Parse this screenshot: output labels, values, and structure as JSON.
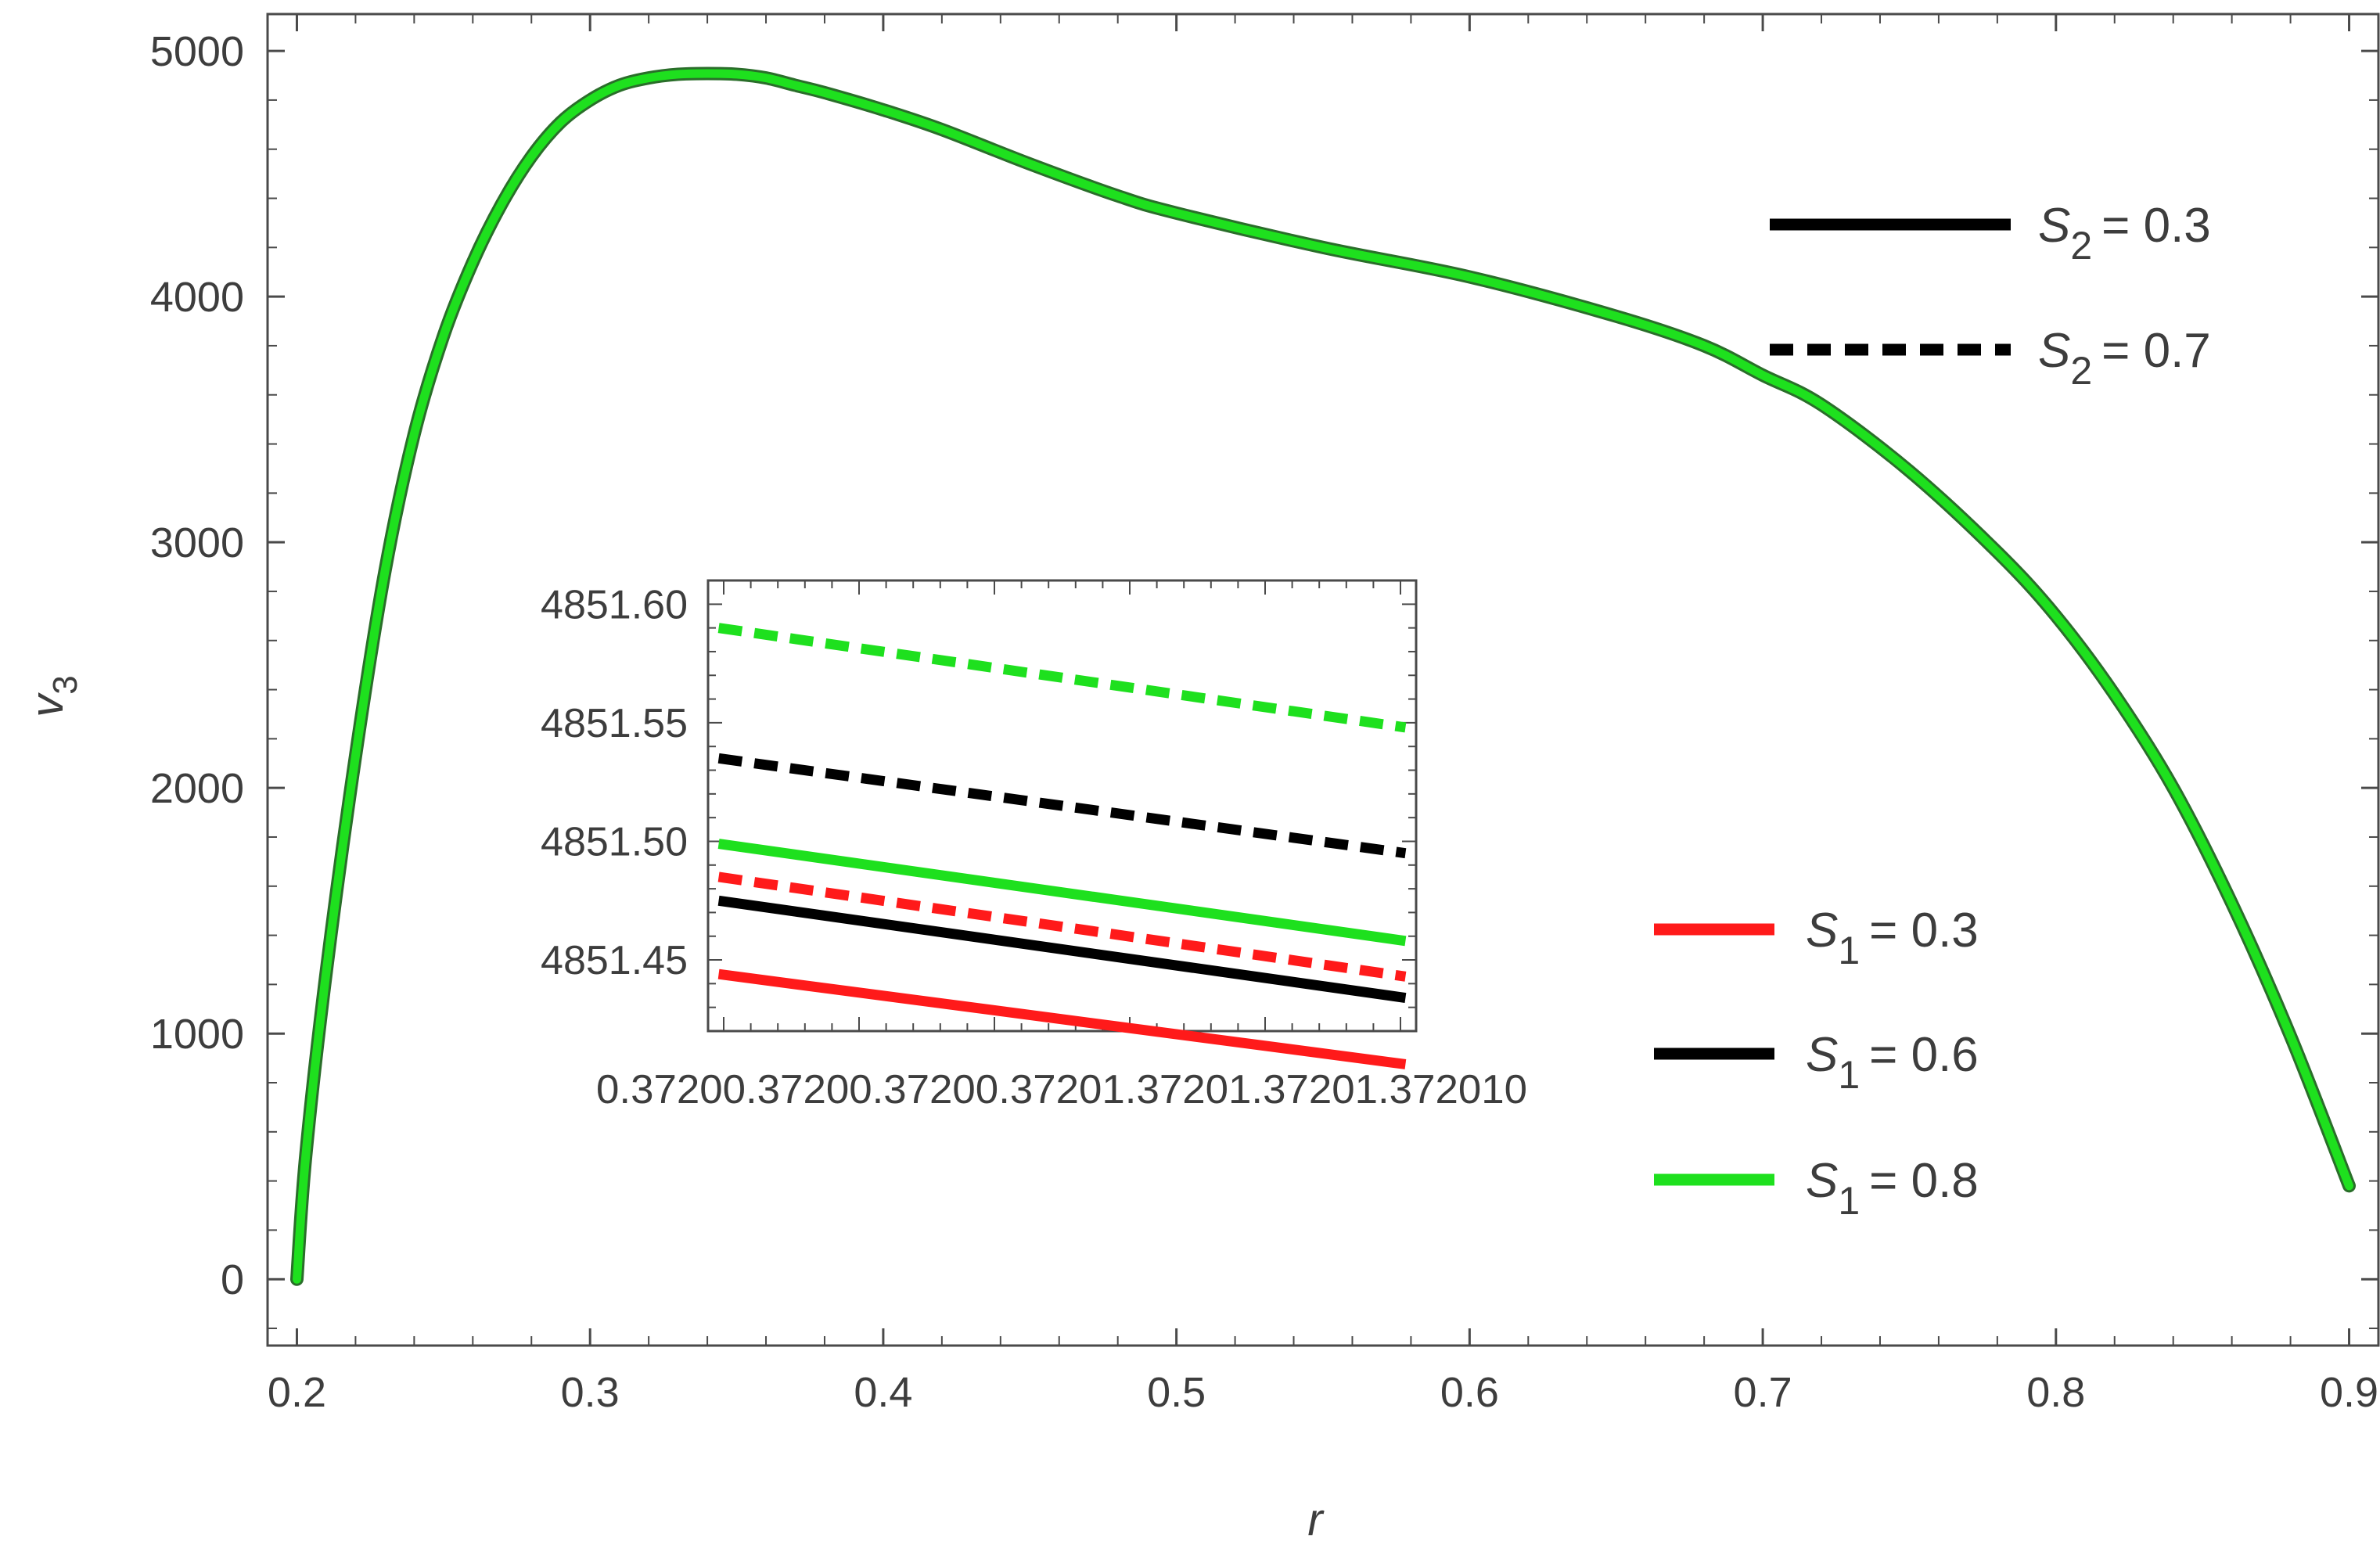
{
  "chart_data": [
    {
      "type": "line",
      "title": "",
      "xlabel": "r",
      "ylabel": "v",
      "ylabel_sub": "3",
      "xlim": [
        0.19,
        0.91
      ],
      "ylim": [
        -270,
        5150
      ],
      "x_ticks": [
        0.2,
        0.3,
        0.4,
        0.5,
        0.6,
        0.7,
        0.8,
        0.9
      ],
      "x_tick_labels": [
        "0.2",
        "0.3",
        "0.4",
        "0.5",
        "0.6",
        "0.7",
        "0.8",
        "0.9"
      ],
      "y_ticks": [
        0,
        1000,
        2000,
        3000,
        4000,
        5000
      ],
      "y_tick_labels": [
        "0",
        "1000",
        "2000",
        "3000",
        "4000",
        "5000"
      ],
      "grid": false,
      "series": [
        {
          "color": "#1ee01e",
          "style": "solid",
          "x": [
            0.2,
            0.203,
            0.21,
            0.22,
            0.23,
            0.24,
            0.25,
            0.26,
            0.27,
            0.28,
            0.29,
            0.3,
            0.31,
            0.32,
            0.33,
            0.34,
            0.35,
            0.36,
            0.37,
            0.38,
            0.4,
            0.42,
            0.45,
            0.48,
            0.5,
            0.55,
            0.6,
            0.65,
            0.68,
            0.7,
            0.72,
            0.75,
            0.78,
            0.8,
            0.82,
            0.84,
            0.86,
            0.88,
            0.9
          ],
          "y": [
            0,
            500,
            1250,
            2130,
            2880,
            3440,
            3840,
            4140,
            4380,
            4570,
            4710,
            4800,
            4860,
            4890,
            4905,
            4908,
            4905,
            4890,
            4860,
            4830,
            4760,
            4680,
            4540,
            4410,
            4340,
            4200,
            4080,
            3920,
            3800,
            3680,
            3560,
            3290,
            2960,
            2700,
            2380,
            2000,
            1530,
            990,
            380
          ]
        }
      ],
      "legend": {
        "placement": "right",
        "entries": [
          {
            "symbol": "S",
            "sub": "2",
            "text": "= 0.3",
            "color": "#000000",
            "style": "solid"
          },
          {
            "symbol": "S",
            "sub": "2",
            "text": "= 0.7",
            "color": "#000000",
            "style": "dashed"
          },
          {
            "symbol": "S",
            "sub": "1",
            "text": "= 0.3",
            "color": "#ff1a1a",
            "style": "solid"
          },
          {
            "symbol": "S",
            "sub": "1",
            "text": "= 0.6",
            "color": "#000000",
            "style": "solid"
          },
          {
            "symbol": "S",
            "sub": "1",
            "text": "= 0.8",
            "color": "#1ee01e",
            "style": "solid"
          }
        ]
      }
    },
    {
      "type": "line",
      "title": "",
      "xlabel": "",
      "ylabel": "",
      "xlim": [
        0.372,
        0.37201
      ],
      "ylim": [
        4851.42,
        4851.61
      ],
      "x_tick_labels": [
        "0.372",
        "0.37200",
        "0.37200",
        "0.37201",
        "0.37201",
        "0.37201",
        "0.372010"
      ],
      "x_tick_text": "0.37200.37200.37200.37201.37201.37201.372010",
      "y_ticks": [
        4851.45,
        4851.5,
        4851.55,
        4851.6
      ],
      "y_tick_labels": [
        "4851.45",
        "4851.50",
        "4851.55",
        "4851.60"
      ],
      "grid": false,
      "series": [
        {
          "color": "#1ee01e",
          "style": "dashed",
          "y_start": 4851.59,
          "y_end": 4851.548
        },
        {
          "color": "#000000",
          "style": "dashed",
          "y_start": 4851.535,
          "y_end": 4851.495
        },
        {
          "color": "#1ee01e",
          "style": "solid",
          "y_start": 4851.499,
          "y_end": 4851.458
        },
        {
          "color": "#ff1a1a",
          "style": "dashed",
          "y_start": 4851.485,
          "y_end": 4851.443
        },
        {
          "color": "#000000",
          "style": "solid",
          "y_start": 4851.475,
          "y_end": 4851.434
        },
        {
          "color": "#ff1a1a",
          "style": "solid",
          "y_start": 4851.444,
          "y_end": 4851.406
        }
      ]
    }
  ]
}
